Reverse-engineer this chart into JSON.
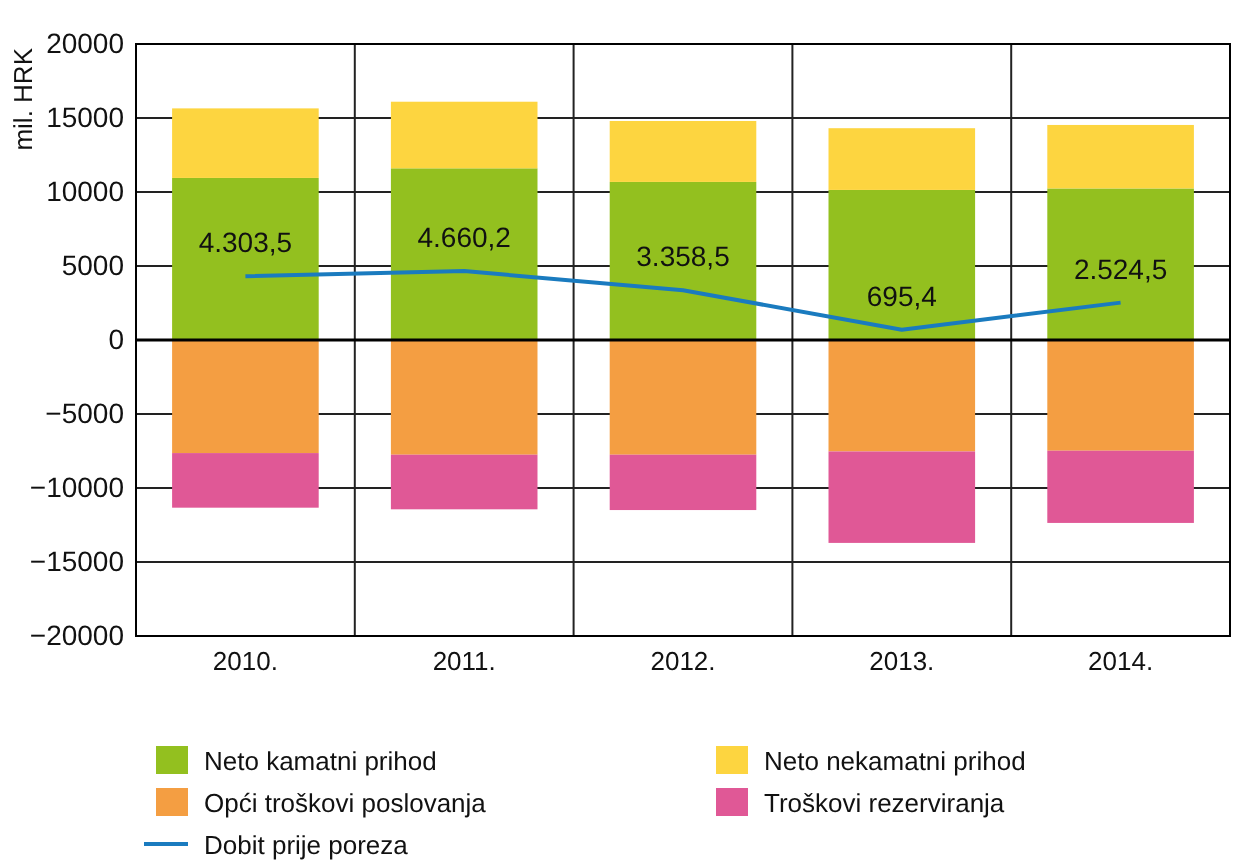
{
  "chart_data": {
    "type": "bar",
    "stacked": true,
    "ylabel": "mil. HRK",
    "categories": [
      "2010.",
      "2011.",
      "2012.",
      "2013.",
      "2014."
    ],
    "series": [
      {
        "name": "Neto kamatni prihod",
        "color": "#93c01f",
        "values": [
          10950,
          11600,
          10680,
          10140,
          10240
        ]
      },
      {
        "name": "Neto nekamatni prihod",
        "color": "#fdd540",
        "values": [
          4700,
          4500,
          4120,
          4170,
          4290
        ]
      },
      {
        "name": "Opći troškovi poslovanja",
        "color": "#f49e42",
        "values": [
          -7640,
          -7750,
          -7750,
          -7530,
          -7480
        ]
      },
      {
        "name": "Troškovi rezerviranja",
        "color": "#e05896",
        "values": [
          -3690,
          -3690,
          -3740,
          -6180,
          -4880
        ]
      },
      {
        "name": "Dobit prije poreza",
        "type": "line",
        "color": "#1a7bbf",
        "values": [
          4303.5,
          4660.2,
          3358.5,
          695.4,
          2524.5
        ],
        "value_labels": [
          "4.303,5",
          "4.660,2",
          "3.358,5",
          "695,4",
          "2.524,5"
        ]
      }
    ],
    "ylim": [
      -20000,
      20000
    ],
    "yticks": [
      {
        "value": -20000,
        "label": "−20000"
      },
      {
        "value": -15000,
        "label": "−15000"
      },
      {
        "value": -10000,
        "label": "−10000"
      },
      {
        "value": -5000,
        "label": "−5000"
      },
      0,
      5000,
      10000,
      15000,
      20000
    ],
    "grid": true,
    "legend": "bottom"
  }
}
